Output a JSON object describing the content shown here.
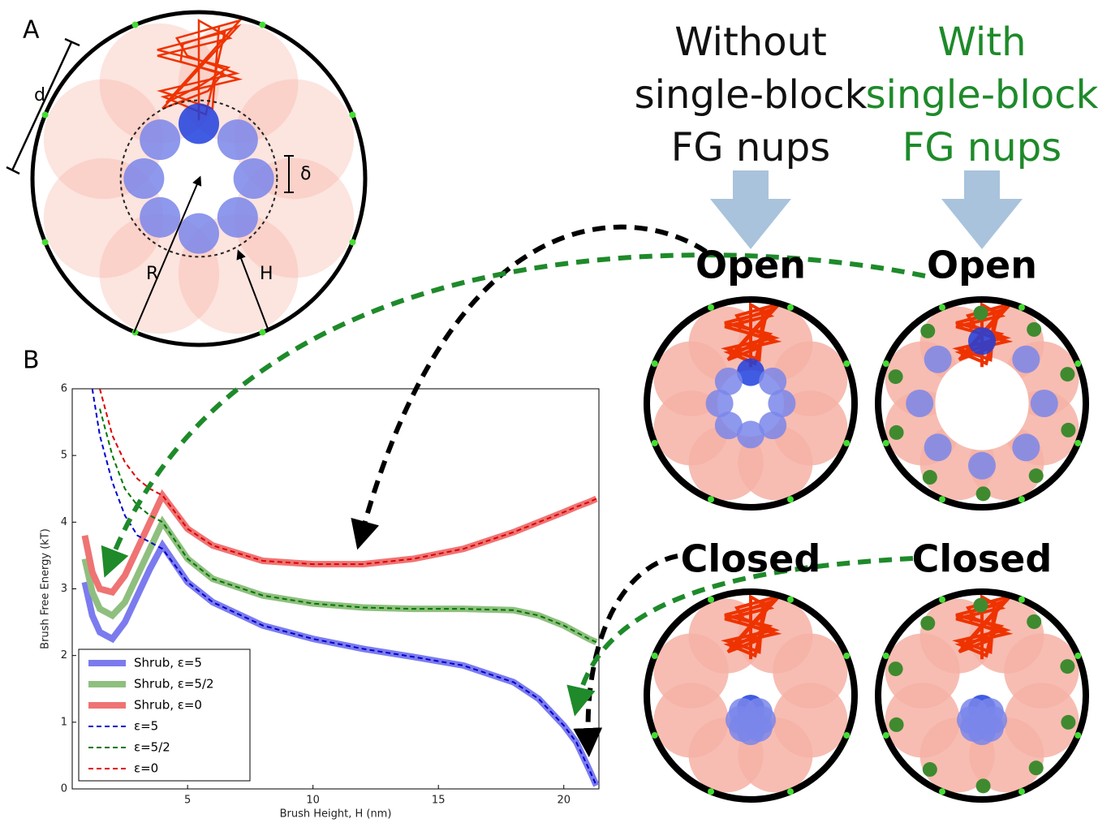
{
  "panel_a": {
    "label": "A",
    "d": "d",
    "delta": "δ",
    "r": "R",
    "h": "H"
  },
  "panel_b": {
    "label": "B"
  },
  "chart_data": {
    "type": "line",
    "x_label": "Brush Height, H (nm)",
    "y_label": "Brush Free Energy (kT)",
    "x": [
      0.9,
      1.2,
      1.5,
      2,
      2.5,
      3,
      3.5,
      4,
      5,
      6,
      8,
      10,
      12,
      14,
      16,
      18,
      19,
      20,
      20.5,
      21,
      21.3
    ],
    "xlim": [
      0.4,
      21.4
    ],
    "xticks": [
      5,
      10,
      15,
      20
    ],
    "ylim": [
      0,
      6
    ],
    "yticks": [
      0,
      1,
      2,
      3,
      4,
      5,
      6
    ],
    "legend": "lower left",
    "series": [
      {
        "name": "Shrub, ε=5",
        "color": "#7b7bef",
        "style": "solid",
        "values": [
          3.1,
          2.6,
          2.35,
          2.25,
          2.5,
          2.9,
          3.3,
          3.65,
          3.1,
          2.8,
          2.45,
          2.25,
          2.1,
          1.98,
          1.85,
          1.6,
          1.35,
          0.95,
          0.7,
          0.3,
          0.05
        ]
      },
      {
        "name": "Shrub, ε=5/2",
        "color": "#8fbf7f",
        "style": "solid",
        "values": [
          3.45,
          2.95,
          2.7,
          2.6,
          2.8,
          3.2,
          3.6,
          4.0,
          3.45,
          3.15,
          2.9,
          2.78,
          2.72,
          2.7,
          2.7,
          2.68,
          2.6,
          2.45,
          2.35,
          2.25,
          2.2
        ]
      },
      {
        "name": "Shrub, ε=0",
        "color": "#ef7373",
        "style": "solid",
        "values": [
          3.8,
          3.25,
          3.0,
          2.95,
          3.2,
          3.6,
          4.0,
          4.4,
          3.9,
          3.65,
          3.42,
          3.37,
          3.37,
          3.45,
          3.6,
          3.85,
          4.0,
          4.15,
          4.23,
          4.3,
          4.35
        ]
      },
      {
        "name": "ε=5",
        "color": "#0000cc",
        "style": "dashed",
        "values": [
          null,
          6.0,
          5.3,
          4.6,
          4.1,
          3.8,
          3.7,
          3.6,
          3.1,
          2.8,
          2.45,
          2.25,
          2.1,
          1.98,
          1.85,
          1.6,
          1.35,
          0.95,
          0.7,
          0.3,
          0.05
        ]
      },
      {
        "name": "ε=5/2",
        "color": "#007700",
        "style": "dashed",
        "values": [
          null,
          null,
          5.7,
          5.0,
          4.5,
          4.25,
          4.1,
          4.0,
          3.45,
          3.15,
          2.9,
          2.78,
          2.72,
          2.7,
          2.7,
          2.68,
          2.6,
          2.45,
          2.35,
          2.25,
          2.2
        ]
      },
      {
        "name": "ε=0",
        "color": "#dd0000",
        "style": "dashed",
        "values": [
          null,
          null,
          6.0,
          5.3,
          4.9,
          4.65,
          4.5,
          4.4,
          3.9,
          3.65,
          3.42,
          3.37,
          3.37,
          3.45,
          3.6,
          3.85,
          4.0,
          4.15,
          4.23,
          4.3,
          4.35
        ]
      }
    ]
  },
  "columns": [
    {
      "header": [
        "Without",
        "single-block",
        "FG nups"
      ],
      "color": "#111111",
      "open": "Open",
      "closed": "Closed"
    },
    {
      "header": [
        "With",
        "single-block",
        "FG nups"
      ],
      "color": "#1e8a2a",
      "open": "Open",
      "closed": "Closed"
    }
  ]
}
